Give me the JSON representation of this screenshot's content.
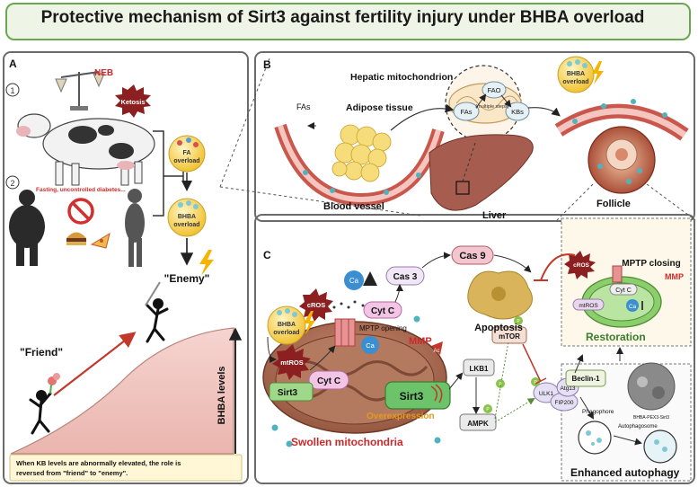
{
  "title": "Protective mechanism of Sirt3 against fertility injury under BHBA overload",
  "colors": {
    "accent_green": "#6aa84f",
    "panel_border": "#6b6b6b",
    "bhba_yellow": "#f6d35a",
    "red_label": "#cc2a2a",
    "mito_brown": "#a5694f"
  },
  "panel_a": {
    "letter": "A",
    "step1": "1",
    "step2": "2",
    "neb": "NEB",
    "ketosis": "Ketosis",
    "fasting": "Fasting, uncontrolled diabetes...",
    "fa_overload": [
      "FA",
      "overload"
    ],
    "bhba_overload": [
      "BHBA",
      "overload"
    ],
    "enemy": "\"Enemy\"",
    "friend": "\"Friend\"",
    "bhba_levels": "BHBA levels",
    "note": [
      "When KB levels are abnormally elevated, the role is",
      "reversed from \"friend\" to \"enemy\"."
    ]
  },
  "panel_b": {
    "letter": "B",
    "hepatic": "Hepatic mitochondrion",
    "fas_left": "FAs",
    "adipose": "Adipose tissue",
    "fas_mito": "FAs",
    "fao": "FAO",
    "multiple_steps": "(multiple steps)",
    "kbs": "KBs",
    "bhba_overload": [
      "BHBA",
      "overload"
    ],
    "blood_vessel": "Blood vessel",
    "liver": "Liver",
    "follicle": "Follicle"
  },
  "panel_c": {
    "letter": "C",
    "cas9": "Cas 9",
    "cas3": "Cas 3",
    "cros": "cROS",
    "ca": "Ca",
    "cytc_top": "Cyt C",
    "mptp_opening": "MPTP opening",
    "apoptosis": "Apoptosis",
    "mmp_down": "MMP",
    "bhba_overload": [
      "BHBA",
      "overload"
    ],
    "mtros": "mtROS",
    "cytc_inner": "Cyt C",
    "sirt3_small": "Sirt3",
    "sirt3_big": "Sirt3",
    "overexpression": "Overexpression",
    "ac": "Ac",
    "lkb1": "LKB1",
    "mtor": "mTOR",
    "ampk": "AMPK",
    "p": "P",
    "ulk1": "ULK1",
    "fip200": "FIP200",
    "atg13": "Atg13",
    "beclin": "Beclin-1",
    "phagophore": "Phagophore",
    "autophagosome": "Autophagosome",
    "swollen": "Swollen mitochondria",
    "enhanced": "Enhanced autophagy",
    "restoration": "Restoration",
    "mptp_closing": "MPTP closing",
    "cros_r": "cROS",
    "mmp_up": "MMP",
    "cytc_r": "Cyt C",
    "mtros_r": "mtROS",
    "ca_r": "Ca",
    "em_label": "BHBA-PEX3-Sirt3"
  }
}
